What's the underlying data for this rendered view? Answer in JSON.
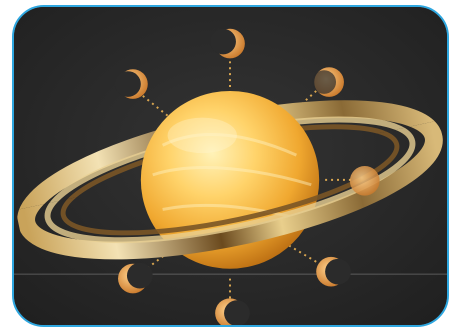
{
  "illustration": {
    "subject_icon": "ringed-planet-icon",
    "moon_icon": "moon-phase-icon",
    "colors": {
      "frame_border": "#2ea7e0",
      "background": "#2b2b2b",
      "planet_light": "#ffe08a",
      "planet_mid": "#f0a830",
      "planet_dark": "#b86a10",
      "ring_light": "#f3e2b4",
      "ring_dark": "#6b4a1e",
      "moon": "#e8a444",
      "dots": "#d9a650"
    }
  }
}
